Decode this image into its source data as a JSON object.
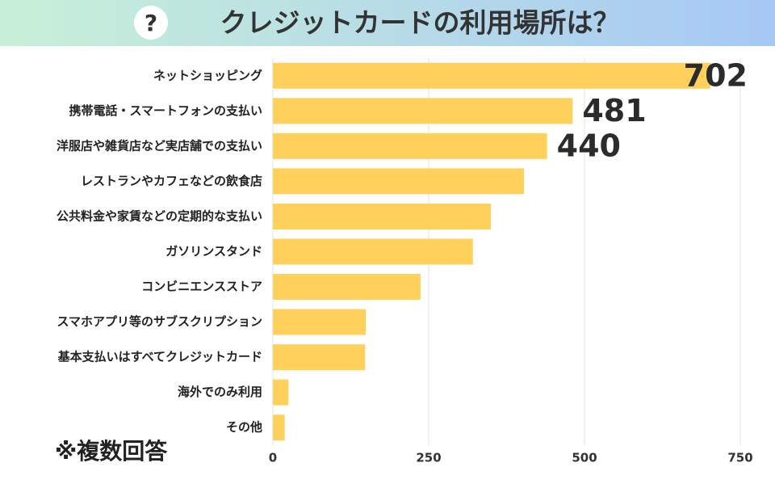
{
  "chart_data": {
    "type": "barh",
    "title": "クレジットカードの利用場所は？",
    "note": "※複数回答",
    "categories": [
      "ネットショッピング",
      "携帯電話・スマートフォンの支払い",
      "洋服店や雑貨店など実店舗での支払い",
      "レストランやカフェなどの飲食店",
      "公共料金や家賃などの定期的な支払い",
      "ガソリンスタンド",
      "コンビニエンスストア",
      "スマホアプリ等のサブスクリプション",
      "基本支払いはすべてクレジットカード",
      "海外でのみ利用",
      "その他"
    ],
    "values": [
      702,
      481,
      440,
      403,
      350,
      321,
      237,
      149,
      148,
      25,
      19
    ],
    "value_labels": [
      "702",
      "481",
      "440",
      null,
      null,
      null,
      null,
      null,
      null,
      null,
      null
    ],
    "color": "#ffd15c",
    "xlim": [
      0,
      750
    ],
    "xticks": [
      0,
      250,
      500,
      750
    ],
    "grid": true
  }
}
